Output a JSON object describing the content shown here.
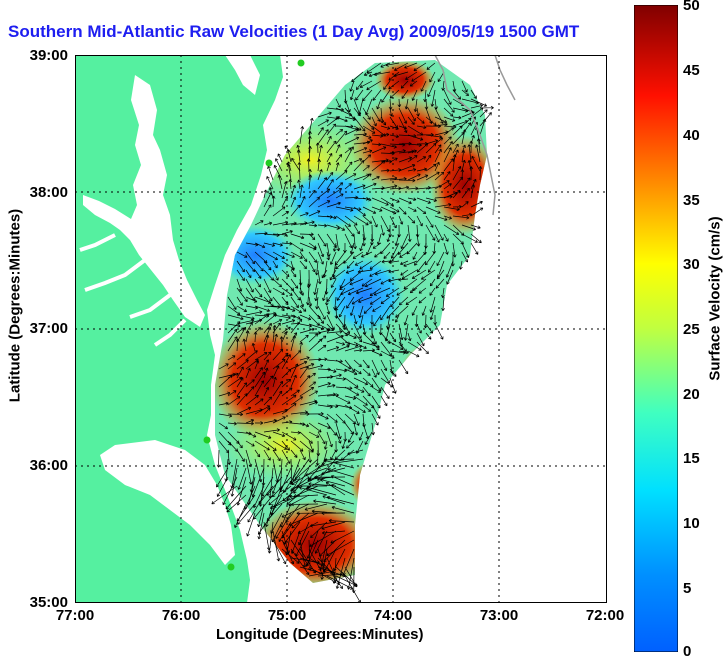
{
  "title": "Southern Mid-Atlantic Raw Velocities (1 Day Avg) 2009/05/19 1500 GMT",
  "axes": {
    "xlabel": "Longitude (Degrees:Minutes)",
    "ylabel": "Latitude (Degrees:Minutes)",
    "xticks": [
      "77:00",
      "76:00",
      "75:00",
      "74:00",
      "73:00",
      "72:00"
    ],
    "yticks": [
      "39:00",
      "38:00",
      "37:00",
      "36:00",
      "35:00"
    ],
    "grid": "dotted"
  },
  "colorbar": {
    "label": "Surface Velocity (cm/s)",
    "ticks": [
      "0",
      "5",
      "10",
      "15",
      "20",
      "25",
      "30",
      "35",
      "40",
      "45",
      "50"
    ],
    "range": [
      0,
      50
    ],
    "colormap": "jet"
  },
  "colors": {
    "title": "#1e1ef0",
    "land": "#55f0a0",
    "coastline": "#9a9a9a",
    "vectors": "#000000",
    "station": "#22cc22"
  },
  "map_extent": {
    "lon": [
      -77,
      -72
    ],
    "lat": [
      35,
      39
    ]
  }
}
